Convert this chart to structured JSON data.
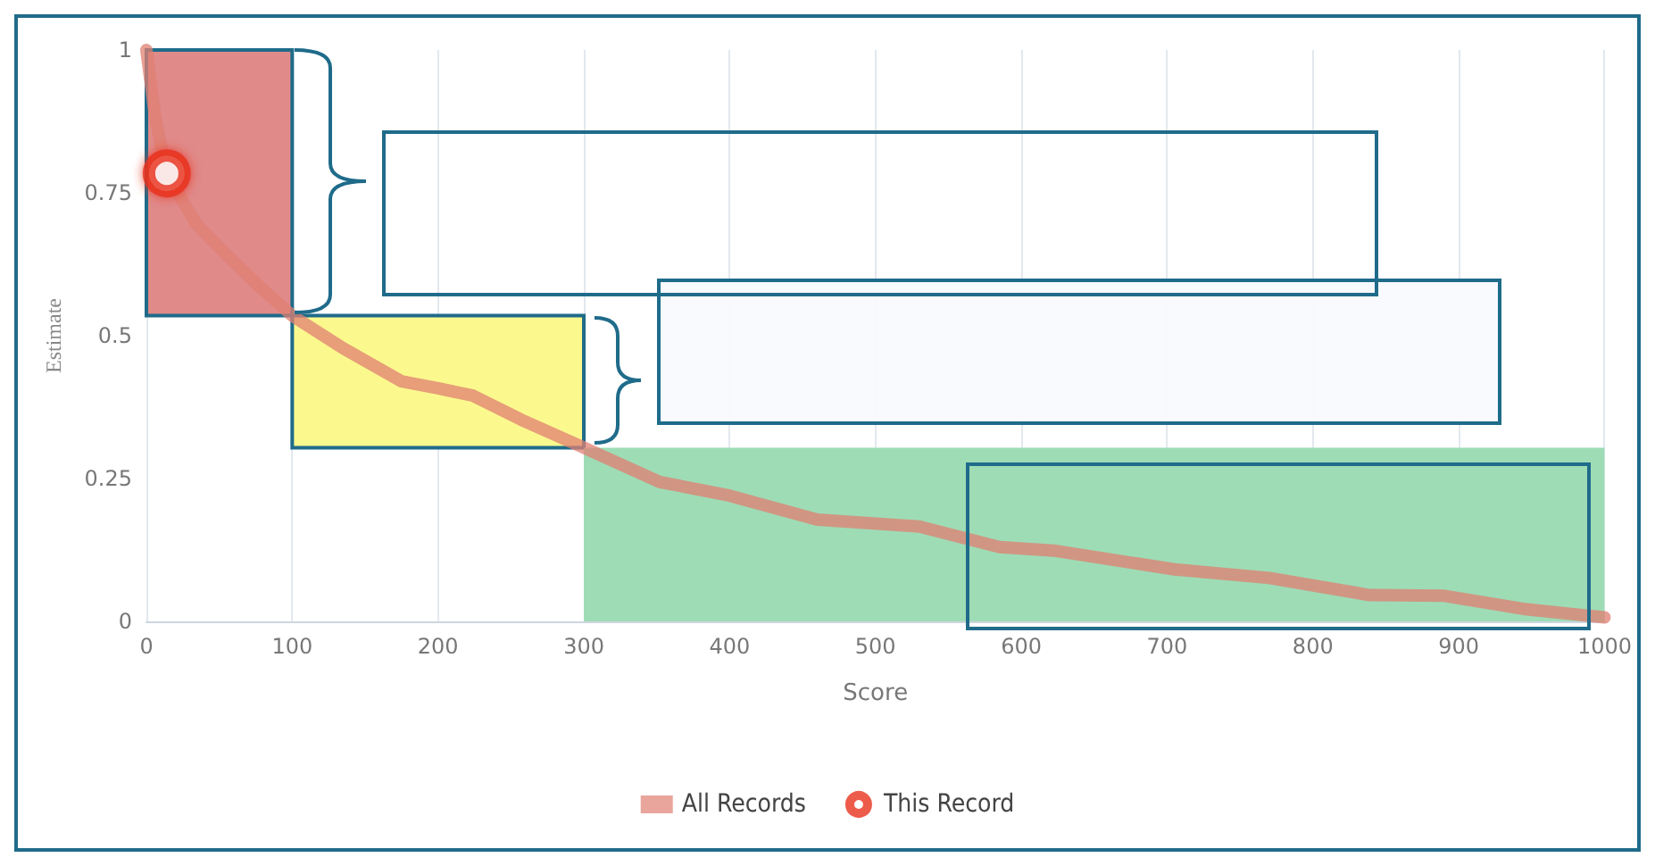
{
  "chart_data": {
    "type": "line",
    "xlabel": "Score",
    "ylabel": "Estimate",
    "xlim": [
      0,
      1000
    ],
    "ylim": [
      0,
      1
    ],
    "xticks": [
      0,
      100,
      200,
      300,
      400,
      500,
      600,
      700,
      800,
      900,
      1000
    ],
    "yticks": [
      0,
      0.25,
      0.5,
      0.75,
      1
    ],
    "grid": "x",
    "legend": "bottom",
    "marker": "none",
    "series": [
      {
        "name": "All Records",
        "color": "#e07f72",
        "x": [
          0,
          6,
          14,
          34,
          54,
          75,
          100,
          135,
          175,
          200,
          224,
          257,
          300,
          352,
          400,
          460,
          530,
          585,
          622,
          705,
          770,
          839,
          889,
          944,
          1000
        ],
        "values": [
          1,
          0.883,
          0.784,
          0.696,
          0.644,
          0.592,
          0.535,
          0.478,
          0.42,
          0.408,
          0.395,
          0.353,
          0.304,
          0.244,
          0.22,
          0.178,
          0.166,
          0.13,
          0.124,
          0.091,
          0.076,
          0.046,
          0.045,
          0.022,
          0.007
        ]
      },
      {
        "name": "This Record",
        "type": "scatter",
        "color": "#e8321e",
        "marker": "circle",
        "x": [
          14
        ],
        "values": [
          0.784
        ]
      }
    ],
    "bands": [
      {
        "axis": "x",
        "from": 0,
        "to": 100,
        "color": "#e08a8a"
      },
      {
        "axis": "x",
        "from": 100,
        "to": 300,
        "color": "#fbf98e"
      },
      {
        "axis": "x",
        "from": 300,
        "to": 1000,
        "color": "#9edcb6"
      }
    ]
  }
}
